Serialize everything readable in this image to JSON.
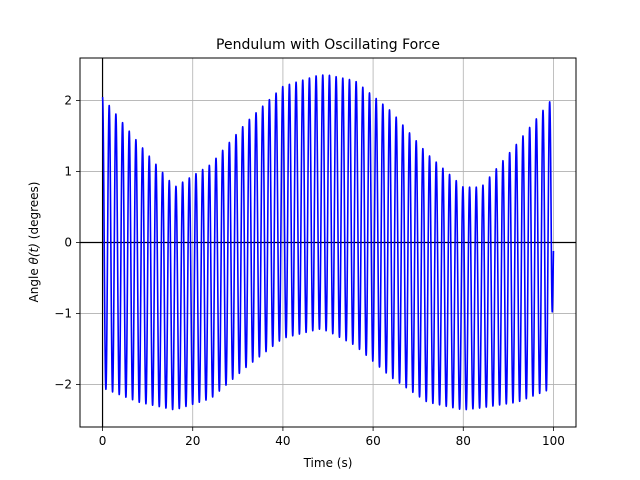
{
  "chart_data": {
    "type": "line",
    "title": "Pendulum with Oscillating Force",
    "xlabel": "Time (s)",
    "ylabel_prefix": "Angle ",
    "ylabel_symbol": "θ(t)",
    "ylabel_suffix": " (degrees)",
    "xlim": [
      -5,
      105
    ],
    "ylim": [
      -2.6,
      2.6
    ],
    "xticks": [
      0,
      20,
      40,
      60,
      80,
      100
    ],
    "xtick_labels": [
      "0",
      "20",
      "40",
      "60",
      "80",
      "100"
    ],
    "yticks": [
      -2,
      -1,
      0,
      1,
      2
    ],
    "ytick_labels": [
      "−2",
      "−1",
      "0",
      "1",
      "2"
    ],
    "grid": true,
    "reference_lines": {
      "x": 0,
      "y": 0,
      "color": "#000000"
    },
    "series": [
      {
        "color": "#0000ff",
        "t_start": 0,
        "t_end": 100,
        "oscillation_period": 1.48,
        "outer_envelope": {
          "t": [
            0,
            8,
            16,
            24,
            32,
            40,
            48,
            50,
            56,
            64,
            72,
            80,
            84,
            92,
            100
          ],
          "max": [
            2.05,
            1.4,
            0.78,
            1.1,
            1.7,
            2.2,
            2.36,
            2.36,
            2.28,
            1.85,
            1.25,
            0.78,
            0.78,
            1.4,
            2.05
          ],
          "min": [
            -2.05,
            -2.25,
            -2.36,
            -2.2,
            -1.75,
            -1.35,
            -1.22,
            -1.25,
            -1.45,
            -1.9,
            -2.25,
            -2.36,
            -2.33,
            -2.25,
            -2.05
          ]
        },
        "final_value": -0.12
      }
    ]
  }
}
